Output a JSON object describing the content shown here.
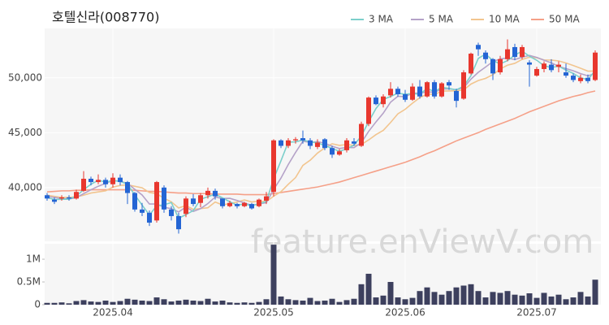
{
  "chart_data": {
    "type": "candlestick",
    "title": "호텔신라(008770)",
    "watermark": "feature.enViewV.com",
    "categories": [
      null,
      null,
      null,
      null,
      null,
      null,
      null,
      null,
      null,
      "2025.04",
      null,
      null,
      null,
      null,
      null,
      null,
      null,
      null,
      null,
      null,
      null,
      null,
      null,
      null,
      null,
      null,
      null,
      null,
      null,
      null,
      null,
      "2025.05",
      null,
      null,
      null,
      null,
      null,
      null,
      null,
      null,
      null,
      null,
      null,
      null,
      null,
      null,
      null,
      null,
      null,
      "2025.06",
      null,
      null,
      null,
      null,
      null,
      null,
      null,
      null,
      null,
      null,
      null,
      null,
      null,
      null,
      null,
      null,
      null,
      "2025.07",
      null,
      null,
      null,
      null,
      null,
      null,
      null,
      null
    ],
    "open": [
      39300,
      38900,
      39000,
      39100,
      39000,
      39700,
      40800,
      40500,
      40700,
      40300,
      40900,
      40500,
      39500,
      38000,
      37700,
      37000,
      40000,
      38000,
      37400,
      37600,
      39000,
      38600,
      39300,
      39700,
      39000,
      38300,
      38500,
      38300,
      38500,
      38300,
      38800,
      39600,
      44300,
      43800,
      44300,
      44500,
      44300,
      43700,
      44400,
      43600,
      43000,
      43400,
      44200,
      43800,
      45800,
      48200,
      47600,
      48400,
      49000,
      48500,
      48000,
      49200,
      48300,
      49600,
      48300,
      49600,
      48800,
      48100,
      50400,
      53000,
      52300,
      51700,
      50500,
      51700,
      52800,
      51900,
      51400,
      50200,
      50800,
      51200,
      51000,
      50500,
      50200,
      49700,
      50000,
      49800
    ],
    "high": [
      39500,
      39100,
      39300,
      39300,
      39800,
      41500,
      41000,
      41200,
      40900,
      41300,
      41200,
      40600,
      39600,
      38600,
      37900,
      40600,
      40200,
      38300,
      37700,
      39200,
      39400,
      39500,
      40000,
      39900,
      39000,
      38800,
      38600,
      38700,
      38600,
      39000,
      39600,
      44400,
      44400,
      44500,
      44600,
      45200,
      44500,
      44400,
      44500,
      43800,
      43500,
      44500,
      44500,
      46000,
      48300,
      48400,
      48500,
      49600,
      49200,
      48900,
      49500,
      49800,
      49700,
      49800,
      49600,
      49800,
      49000,
      50700,
      52300,
      53200,
      52500,
      51800,
      52000,
      53500,
      53100,
      53000,
      51600,
      51000,
      51500,
      51700,
      51500,
      51300,
      50400,
      50300,
      50300,
      52500
    ],
    "low": [
      38800,
      38500,
      38800,
      38800,
      38900,
      39600,
      40200,
      40300,
      40000,
      40000,
      40200,
      38500,
      37800,
      37400,
      36500,
      36800,
      37700,
      37000,
      35800,
      37300,
      38300,
      38200,
      39000,
      38900,
      38100,
      38200,
      38100,
      38200,
      38000,
      38200,
      38500,
      39200,
      43600,
      43600,
      44000,
      44000,
      43500,
      43500,
      43400,
      42700,
      42900,
      43200,
      43800,
      43700,
      45600,
      47500,
      47300,
      48200,
      48300,
      47800,
      47900,
      48100,
      48200,
      48100,
      48200,
      48900,
      47300,
      48000,
      50300,
      52000,
      51300,
      49800,
      50300,
      51500,
      51600,
      51700,
      49200,
      50100,
      50500,
      50500,
      50500,
      50000,
      49600,
      49500,
      49500,
      49700
    ],
    "close": [
      39000,
      38700,
      39100,
      39000,
      39600,
      40800,
      40500,
      40700,
      40300,
      40900,
      40500,
      39500,
      38000,
      37700,
      36800,
      40500,
      38000,
      37400,
      36200,
      39000,
      38500,
      39300,
      39700,
      39200,
      38300,
      38600,
      38300,
      38600,
      38100,
      38900,
      39200,
      44300,
      43800,
      44300,
      44400,
      44300,
      43800,
      44100,
      43600,
      43000,
      43300,
      44300,
      44000,
      45800,
      48200,
      47600,
      48300,
      49000,
      48500,
      48000,
      49200,
      48300,
      49600,
      48300,
      49500,
      49300,
      47900,
      50500,
      52200,
      52600,
      51700,
      50400,
      51700,
      52600,
      51900,
      52800,
      51200,
      50800,
      51300,
      50700,
      51200,
      50200,
      49800,
      50000,
      49700,
      52300
    ],
    "up_color": "#e8372e",
    "down_color": "#2465d4",
    "ma_series": [
      {
        "name": "3 MA",
        "color": "#7ccfcb",
        "values": [
          39100,
          38900,
          38933,
          38933,
          39233,
          39800,
          40300,
          40667,
          40500,
          40633,
          40567,
          40300,
          39333,
          38400,
          37500,
          38333,
          38433,
          38633,
          37200,
          37533,
          37900,
          38933,
          39167,
          39400,
          39067,
          38700,
          38400,
          38500,
          38333,
          38533,
          38733,
          40800,
          42433,
          44133,
          44167,
          44333,
          44167,
          44067,
          43833,
          43567,
          43300,
          43533,
          43867,
          44700,
          46000,
          47200,
          48033,
          48300,
          48600,
          48500,
          48567,
          48500,
          49033,
          48733,
          49133,
          49033,
          48900,
          49233,
          50200,
          51767,
          52167,
          51567,
          51267,
          51567,
          52067,
          52433,
          51967,
          51600,
          51100,
          50933,
          51067,
          50700,
          50400,
          50000,
          49833,
          50667
        ]
      },
      {
        "name": "5 MA",
        "color": "#b5a2c8",
        "values": [
          39200,
          39100,
          39000,
          38950,
          39080,
          39440,
          39800,
          40120,
          40380,
          40640,
          40580,
          40380,
          39840,
          39320,
          38500,
          38500,
          38200,
          38080,
          37780,
          38220,
          37820,
          38080,
          38540,
          39140,
          39000,
          39020,
          38820,
          38600,
          38380,
          38500,
          38620,
          39820,
          40860,
          42100,
          43200,
          44220,
          44120,
          44180,
          44040,
          43760,
          43560,
          43660,
          43640,
          44080,
          45120,
          45980,
          46780,
          47780,
          48320,
          48280,
          48600,
          48600,
          48720,
          48680,
          48980,
          49000,
          48920,
          49100,
          49880,
          50500,
          50980,
          51480,
          51720,
          51800,
          51660,
          51880,
          52040,
          51860,
          51600,
          51360,
          51040,
          50840,
          50640,
          50380,
          50180,
          50400
        ]
      },
      {
        "name": "10 MA",
        "color": "#f2c58f",
        "values": [
          39300,
          39200,
          39100,
          39100,
          39150,
          39300,
          39500,
          39600,
          39700,
          40040,
          40190,
          40250,
          40110,
          39980,
          39540,
          39440,
          39020,
          38700,
          38140,
          38360,
          38010,
          38080,
          38160,
          38680,
          38410,
          38550,
          38680,
          38870,
          38690,
          38760,
          38720,
          39210,
          39620,
          40300,
          40910,
          42020,
          42490,
          43140,
          43620,
          43990,
          43840,
          43920,
          43840,
          43920,
          44340,
          44820,
          45210,
          45930,
          46720,
          47130,
          47690,
          48190,
          48520,
          48480,
          48790,
          48800,
          48820,
          48890,
          49430,
          49750,
          49950,
          50290,
          50800,
          51150,
          51320,
          51680,
          51880,
          51830,
          51630,
          51620,
          51540,
          51350,
          51120,
          50870,
          50610,
          50620
        ]
      },
      {
        "name": "50 MA",
        "color": "#f5a088",
        "values": [
          39600,
          39650,
          39700,
          39700,
          39750,
          39750,
          39800,
          39800,
          39800,
          39800,
          39800,
          39800,
          39750,
          39700,
          39650,
          39650,
          39600,
          39550,
          39500,
          39500,
          39450,
          39450,
          39450,
          39400,
          39400,
          39400,
          39400,
          39350,
          39350,
          39350,
          39350,
          39450,
          39550,
          39650,
          39750,
          39850,
          39950,
          40050,
          40200,
          40350,
          40500,
          40700,
          40900,
          41100,
          41300,
          41500,
          41700,
          41900,
          42100,
          42300,
          42550,
          42800,
          43100,
          43350,
          43650,
          43950,
          44250,
          44500,
          44750,
          45000,
          45300,
          45550,
          45800,
          46050,
          46300,
          46600,
          46900,
          47150,
          47400,
          47650,
          47900,
          48100,
          48300,
          48450,
          48650,
          48800
        ]
      }
    ],
    "ylim": [
      35100,
      54500
    ],
    "yticks": [
      {
        "value": 40000,
        "label": "40,000"
      },
      {
        "value": 45000,
        "label": "45,000"
      },
      {
        "value": 50000,
        "label": "50,000"
      }
    ],
    "volume": {
      "type": "bar",
      "color": "#3d405e",
      "values": [
        40000,
        40000,
        50000,
        30000,
        80000,
        100000,
        70000,
        60000,
        90000,
        60000,
        80000,
        130000,
        110000,
        90000,
        80000,
        160000,
        120000,
        70000,
        90000,
        110000,
        90000,
        80000,
        130000,
        70000,
        90000,
        50000,
        40000,
        50000,
        40000,
        60000,
        120000,
        1320000,
        180000,
        120000,
        100000,
        90000,
        150000,
        80000,
        90000,
        130000,
        60000,
        100000,
        130000,
        450000,
        680000,
        160000,
        200000,
        500000,
        160000,
        120000,
        150000,
        300000,
        380000,
        280000,
        220000,
        300000,
        380000,
        420000,
        450000,
        300000,
        160000,
        280000,
        260000,
        300000,
        220000,
        200000,
        250000,
        150000,
        260000,
        180000,
        220000,
        120000,
        160000,
        280000,
        180000,
        550000
      ],
      "ylim": [
        0,
        1340000
      ],
      "yticks": [
        0,
        {
          "value": 500000,
          "label": "0.5M"
        },
        {
          "value": 1000000,
          "label": "1M"
        }
      ]
    }
  }
}
